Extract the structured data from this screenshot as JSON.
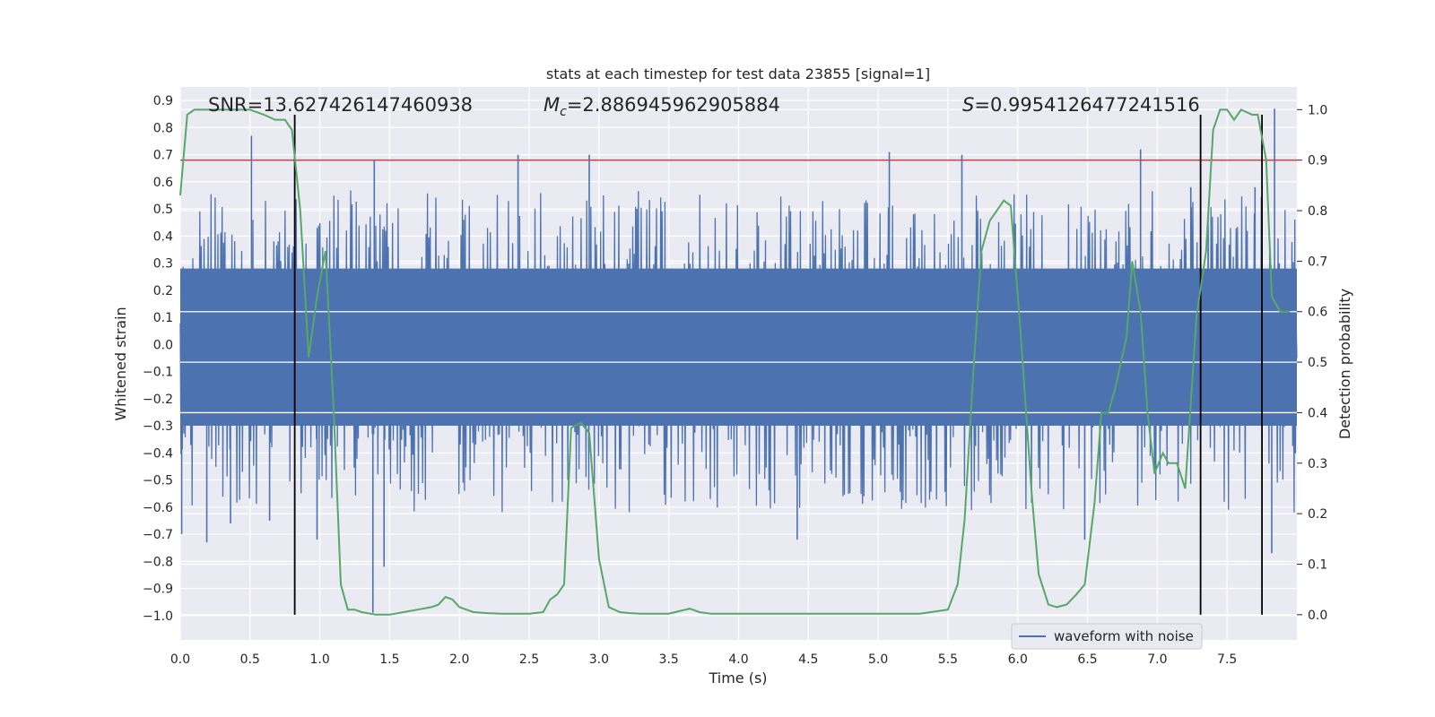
{
  "chart_data": {
    "type": "line",
    "title": "stats at each timestep for test data 23855 [signal=1]",
    "xlabel": "Time (s)",
    "ylabel_left": "Whitened strain",
    "ylabel_right": "Detection probability",
    "xlim": [
      0.0,
      8.0
    ],
    "ylim_left": [
      -1.09,
      0.95
    ],
    "ylim_right": [
      -0.05,
      1.045
    ],
    "x_ticks": [
      "0.0",
      "0.5",
      "1.0",
      "1.5",
      "2.0",
      "2.5",
      "3.0",
      "3.5",
      "4.0",
      "4.5",
      "5.0",
      "5.5",
      "6.0",
      "6.5",
      "7.0",
      "7.5"
    ],
    "x_tick_values": [
      0.0,
      0.5,
      1.0,
      1.5,
      2.0,
      2.5,
      3.0,
      3.5,
      4.0,
      4.5,
      5.0,
      5.5,
      6.0,
      6.5,
      7.0,
      7.5
    ],
    "y_left_ticks": [
      "0.9",
      "0.8",
      "0.7",
      "0.6",
      "0.5",
      "0.4",
      "0.3",
      "0.2",
      "0.1",
      "0.0",
      "−0.1",
      "−0.2",
      "−0.3",
      "−0.4",
      "−0.5",
      "−0.6",
      "−0.7",
      "−0.8",
      "−0.9",
      "−1.0"
    ],
    "y_left_tick_values": [
      0.9,
      0.8,
      0.7,
      0.6,
      0.5,
      0.4,
      0.3,
      0.2,
      0.1,
      0.0,
      -0.1,
      -0.2,
      -0.3,
      -0.4,
      -0.5,
      -0.6,
      -0.7,
      -0.8,
      -0.9,
      -1.0
    ],
    "y_right_ticks": [
      "1.0",
      "0.9",
      "0.8",
      "0.7",
      "0.6",
      "0.5",
      "0.4",
      "0.3",
      "0.2",
      "0.1",
      "0.0"
    ],
    "y_right_tick_values": [
      1.0,
      0.9,
      0.8,
      0.7,
      0.6,
      0.5,
      0.4,
      0.3,
      0.2,
      0.1,
      0.0
    ],
    "annotations": {
      "snr": "SNR=13.627426147460938",
      "mc_symbol": "M",
      "mc_sub": "c",
      "mc_value": "=2.886945962905884",
      "s_symbol": "S",
      "s_value": "=0.9954126477241516"
    },
    "threshold": {
      "value_right": 0.9,
      "color": "#c44e52"
    },
    "vertical_lines_x": [
      0.82,
      7.31,
      7.75
    ],
    "vertical_line_range_right": [
      0.0,
      0.99
    ],
    "legend": {
      "label": "waveform with noise",
      "position": "lower-right"
    },
    "waveform": {
      "name": "waveform with noise",
      "color": "#4c72b0",
      "typical_envelope_upper": 0.32,
      "typical_envelope_lower": -0.42,
      "spikes": [
        [
          0.01,
          -0.7
        ],
        [
          0.19,
          -0.73
        ],
        [
          0.36,
          -0.66
        ],
        [
          0.51,
          0.77
        ],
        [
          0.64,
          -0.65
        ],
        [
          0.98,
          -0.72
        ],
        [
          1.38,
          -0.99
        ],
        [
          1.46,
          -0.82
        ],
        [
          1.39,
          0.68
        ],
        [
          2.42,
          0.7
        ],
        [
          2.93,
          0.7
        ],
        [
          4.42,
          -0.72
        ],
        [
          5.08,
          0.71
        ],
        [
          5.6,
          0.7
        ],
        [
          6.48,
          -0.72
        ],
        [
          6.88,
          0.72
        ],
        [
          7.24,
          0.58
        ],
        [
          7.7,
          0.58
        ],
        [
          7.84,
          0.87
        ],
        [
          7.82,
          -0.77
        ]
      ]
    },
    "detection_probability": {
      "name": "detection probability",
      "color": "#55a868",
      "x": [
        0.0,
        0.05,
        0.1,
        0.2,
        0.3,
        0.4,
        0.5,
        0.6,
        0.68,
        0.75,
        0.8,
        0.86,
        0.92,
        0.98,
        1.04,
        1.1,
        1.15,
        1.2,
        1.25,
        1.3,
        1.4,
        1.5,
        1.6,
        1.7,
        1.8,
        1.85,
        1.9,
        1.95,
        2.0,
        2.05,
        2.1,
        2.2,
        2.3,
        2.4,
        2.5,
        2.6,
        2.65,
        2.7,
        2.75,
        2.8,
        2.87,
        2.93,
        3.0,
        3.07,
        3.15,
        3.22,
        3.3,
        3.4,
        3.5,
        3.65,
        3.72,
        3.8,
        3.87,
        4.0,
        4.15,
        4.3,
        4.5,
        4.7,
        5.0,
        5.3,
        5.5,
        5.57,
        5.62,
        5.68,
        5.74,
        5.8,
        5.9,
        5.95,
        6.02,
        6.1,
        6.15,
        6.22,
        6.28,
        6.35,
        6.42,
        6.48,
        6.55,
        6.6,
        6.65,
        6.7,
        6.78,
        6.82,
        6.88,
        6.93,
        6.98,
        7.04,
        7.08,
        7.14,
        7.2,
        7.28,
        7.35,
        7.4,
        7.45,
        7.5,
        7.55,
        7.6,
        7.68,
        7.72,
        7.78,
        7.82,
        7.88,
        7.95
      ],
      "y": [
        0.83,
        0.99,
        1.0,
        1.0,
        1.0,
        1.0,
        1.0,
        0.99,
        0.98,
        0.98,
        0.96,
        0.8,
        0.51,
        0.63,
        0.72,
        0.4,
        0.06,
        0.01,
        0.01,
        0.005,
        0.0,
        0.0,
        0.005,
        0.01,
        0.015,
        0.02,
        0.035,
        0.03,
        0.015,
        0.01,
        0.005,
        0.003,
        0.002,
        0.002,
        0.002,
        0.005,
        0.03,
        0.04,
        0.06,
        0.37,
        0.38,
        0.36,
        0.11,
        0.015,
        0.005,
        0.003,
        0.002,
        0.002,
        0.002,
        0.012,
        0.005,
        0.002,
        0.002,
        0.002,
        0.002,
        0.002,
        0.002,
        0.002,
        0.002,
        0.002,
        0.01,
        0.06,
        0.19,
        0.47,
        0.72,
        0.78,
        0.82,
        0.81,
        0.56,
        0.24,
        0.08,
        0.02,
        0.015,
        0.02,
        0.04,
        0.06,
        0.22,
        0.4,
        0.4,
        0.45,
        0.55,
        0.7,
        0.6,
        0.4,
        0.28,
        0.32,
        0.3,
        0.3,
        0.25,
        0.59,
        0.72,
        0.96,
        1.0,
        1.0,
        0.98,
        1.0,
        0.99,
        0.99,
        0.9,
        0.63,
        0.6,
        0.6
      ]
    }
  }
}
